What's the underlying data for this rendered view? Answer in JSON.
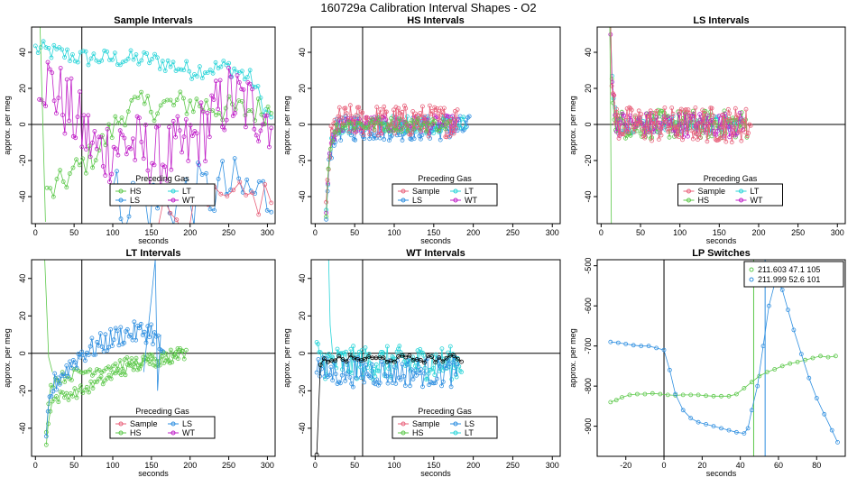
{
  "figure_title": "160729a   Calibration Interval Shapes - O2",
  "colors": {
    "Sample": "#E8607A",
    "HS": "#5CC84A",
    "LS": "#2F8FE0",
    "LT": "#28D4D8",
    "WT": "#C020C8",
    "LP1": "#5CC84A",
    "LP2": "#2F8FE0",
    "black": "#000000"
  },
  "chart_data": [
    {
      "type": "line",
      "id": "sample",
      "title": "Sample Intervals",
      "xlabel": "seconds",
      "ylabel": "approx. per meg",
      "xlim": [
        -5,
        310
      ],
      "ylim": [
        -55,
        54
      ],
      "xticks": [
        0,
        50,
        100,
        150,
        200,
        250,
        300
      ],
      "yticks": [
        -40,
        -20,
        0,
        20,
        40
      ],
      "hline": 0,
      "vline": 60,
      "legend": {
        "title": "Preceding Gas",
        "placement": "bottom-center",
        "entries": [
          "HS",
          "LT",
          "LS",
          "WT"
        ]
      },
      "series": [
        {
          "name": "LT",
          "kind": "noisy",
          "x0": 0,
          "x1": 305,
          "n": 90,
          "amp": 5,
          "anchors": [
            [
              0,
              42
            ],
            [
              60,
              37
            ],
            [
              150,
              36
            ],
            [
              200,
              30
            ],
            [
              250,
              32
            ],
            [
              280,
              25
            ],
            [
              300,
              5
            ]
          ]
        },
        {
          "name": "HS",
          "kind": "noisy",
          "x0": 15,
          "x1": 305,
          "n": 70,
          "amp": 8,
          "anchors": [
            [
              15,
              -40
            ],
            [
              40,
              -30
            ],
            [
              80,
              -15
            ],
            [
              120,
              10
            ],
            [
              160,
              10
            ],
            [
              200,
              12
            ],
            [
              250,
              8
            ],
            [
              300,
              8
            ]
          ]
        },
        {
          "name": "WT",
          "kind": "noisy",
          "x0": 5,
          "x1": 305,
          "n": 110,
          "amp": 20,
          "anchors": [
            [
              5,
              30
            ],
            [
              40,
              10
            ],
            [
              80,
              -15
            ],
            [
              120,
              -10
            ],
            [
              160,
              -20
            ],
            [
              200,
              -12
            ],
            [
              250,
              15
            ],
            [
              300,
              5
            ]
          ]
        },
        {
          "name": "LS",
          "kind": "noisy",
          "x0": 100,
          "x1": 305,
          "n": 40,
          "amp": 18,
          "anchors": [
            [
              100,
              -40
            ],
            [
              150,
              -45
            ],
            [
              200,
              -40
            ],
            [
              250,
              -35
            ],
            [
              300,
              -40
            ]
          ]
        },
        {
          "name": "Sample",
          "kind": "noisy",
          "x0": 150,
          "x1": 305,
          "n": 20,
          "amp": 12,
          "anchors": [
            [
              150,
              -50
            ],
            [
              200,
              -48
            ],
            [
              250,
              -45
            ],
            [
              300,
              -40
            ]
          ]
        },
        {
          "name": "HS",
          "kind": "spike",
          "pts": [
            [
              6,
              54
            ],
            [
              9,
              10
            ],
            [
              13,
              -54
            ]
          ]
        }
      ]
    },
    {
      "type": "line",
      "id": "hs",
      "title": "HS Intervals",
      "xlabel": "seconds",
      "ylabel": "approx. per meg",
      "xlim": [
        -5,
        310
      ],
      "ylim": [
        -55,
        54
      ],
      "xticks": [
        0,
        50,
        100,
        150,
        200,
        250,
        300
      ],
      "yticks": [
        -40,
        -20,
        0,
        20,
        40
      ],
      "hline": 0,
      "vline": 60,
      "legend": {
        "title": "Preceding Gas",
        "placement": "bottom-center",
        "entries": [
          "Sample",
          "LT",
          "LS",
          "WT"
        ]
      },
      "series": [
        {
          "name": "LS",
          "kind": "settle",
          "x0": 14,
          "x1": 195,
          "n": 110,
          "amp": 7,
          "start": -55,
          "tau": 4,
          "end": -2
        },
        {
          "name": "LT",
          "kind": "settle",
          "x0": 14,
          "x1": 190,
          "n": 80,
          "amp": 5,
          "start": -52,
          "tau": 4,
          "end": 0
        },
        {
          "name": "WT",
          "kind": "settle",
          "x0": 14,
          "x1": 180,
          "n": 80,
          "amp": 5,
          "start": -50,
          "tau": 4,
          "end": 0
        },
        {
          "name": "Sample",
          "kind": "settle",
          "x0": 14,
          "x1": 180,
          "n": 110,
          "amp": 9,
          "start": -50,
          "tau": 4,
          "end": 2
        },
        {
          "name": "HS",
          "kind": "settle",
          "x0": 14,
          "x1": 170,
          "n": 60,
          "amp": 4,
          "start": -48,
          "tau": 4,
          "end": 0
        }
      ]
    },
    {
      "type": "line",
      "id": "ls",
      "title": "LS Intervals",
      "xlabel": "seconds",
      "ylabel": "approx. per meg",
      "xlim": [
        -5,
        310
      ],
      "ylim": [
        -55,
        54
      ],
      "xticks": [
        0,
        50,
        100,
        150,
        200,
        250,
        300
      ],
      "yticks": [
        -40,
        -20,
        0,
        20,
        40
      ],
      "hline": 0,
      "vline": null,
      "legend": {
        "title": "Preceding Gas",
        "placement": "bottom-center",
        "entries": [
          "Sample",
          "LT",
          "HS",
          "WT"
        ]
      },
      "series": [
        {
          "name": "LT",
          "kind": "settle",
          "x0": 12,
          "x1": 180,
          "n": 90,
          "amp": 5,
          "start": 54,
          "tau": 2.5,
          "end": 0
        },
        {
          "name": "HS",
          "kind": "settle",
          "x0": 12,
          "x1": 185,
          "n": 110,
          "amp": 8,
          "start": 54,
          "tau": 2.5,
          "end": 0
        },
        {
          "name": "WT",
          "kind": "settle",
          "x0": 12,
          "x1": 180,
          "n": 90,
          "amp": 7,
          "start": 54,
          "tau": 2.5,
          "end": 0
        },
        {
          "name": "Sample",
          "kind": "settle",
          "x0": 12,
          "x1": 190,
          "n": 120,
          "amp": 10,
          "start": 54,
          "tau": 2.5,
          "end": 0
        },
        {
          "name": "HS",
          "kind": "spike",
          "pts": [
            [
              11,
              54
            ],
            [
              12,
              10
            ],
            [
              13,
              -55
            ]
          ]
        }
      ]
    },
    {
      "type": "line",
      "id": "lt",
      "title": "LT Intervals",
      "xlabel": "seconds",
      "ylabel": "approx. per meg",
      "xlim": [
        -5,
        310
      ],
      "ylim": [
        -55,
        50
      ],
      "xticks": [
        0,
        50,
        100,
        150,
        200,
        250,
        300
      ],
      "yticks": [
        -40,
        -20,
        0,
        20,
        40
      ],
      "hline": 0,
      "vline": 60,
      "legend": {
        "title": "Preceding Gas",
        "placement": "bottom-center",
        "entries": [
          "Sample",
          "LS",
          "HS",
          "WT"
        ]
      },
      "series": [
        {
          "name": "HS",
          "kind": "settle",
          "x0": 14,
          "x1": 195,
          "n": 70,
          "amp": 3,
          "start": -50,
          "tau": 3,
          "end": -20,
          "drift": [
            [
              14,
              -25
            ],
            [
              60,
              -20
            ],
            [
              120,
              -8
            ],
            [
              195,
              0
            ]
          ]
        },
        {
          "name": "HS",
          "kind": "settle",
          "x0": 14,
          "x1": 190,
          "n": 60,
          "amp": 3,
          "start": -40,
          "tau": 3,
          "end": -10,
          "drift": [
            [
              14,
              -15
            ],
            [
              60,
              -10
            ],
            [
              120,
              -5
            ],
            [
              190,
              0
            ]
          ]
        },
        {
          "name": "LS",
          "kind": "settle",
          "x0": 14,
          "x1": 165,
          "n": 70,
          "amp": 6,
          "start": -50,
          "tau": 3,
          "end": 0,
          "drift": [
            [
              14,
              -20
            ],
            [
              60,
              0
            ],
            [
              110,
              10
            ],
            [
              150,
              12
            ],
            [
              165,
              0
            ]
          ]
        },
        {
          "name": "HS",
          "kind": "spike",
          "pts": [
            [
              12,
              50
            ],
            [
              14,
              30
            ],
            [
              17,
              -2
            ],
            [
              22,
              -10
            ]
          ]
        },
        {
          "name": "LS",
          "kind": "spike",
          "pts": [
            [
              140,
              -10
            ],
            [
              150,
              30
            ],
            [
              155,
              50
            ],
            [
              158,
              -20
            ],
            [
              162,
              10
            ]
          ]
        }
      ]
    },
    {
      "type": "line",
      "id": "wt",
      "title": "WT Intervals",
      "xlabel": "seconds",
      "ylabel": "approx. per meg",
      "xlim": [
        -5,
        310
      ],
      "ylim": [
        -55,
        50
      ],
      "xticks": [
        0,
        50,
        100,
        150,
        200,
        250,
        300
      ],
      "yticks": [
        -40,
        -20,
        0,
        20,
        40
      ],
      "hline": 0,
      "vline": 60,
      "legend": {
        "title": "Preceding Gas",
        "placement": "bottom-center",
        "entries": [
          "Sample",
          "LS",
          "HS",
          "LT"
        ]
      },
      "series": [
        {
          "name": "LT",
          "kind": "settle",
          "x0": 2,
          "x1": 185,
          "n": 120,
          "amp": 9,
          "start": 0,
          "tau": 3,
          "end": -5
        },
        {
          "name": "LS",
          "kind": "settle",
          "x0": 2,
          "x1": 180,
          "n": 90,
          "amp": 8,
          "start": -5,
          "tau": 3,
          "end": -10
        },
        {
          "name": "black",
          "kind": "settle",
          "x0": 2,
          "x1": 185,
          "n": 40,
          "amp": 2,
          "start": -55,
          "tau": 2,
          "end": -3
        },
        {
          "name": "LT",
          "kind": "spike",
          "pts": [
            [
              17,
              50
            ],
            [
              19,
              15
            ],
            [
              22,
              0
            ]
          ]
        }
      ]
    },
    {
      "type": "line",
      "id": "lp",
      "title": "LP Switches",
      "xlabel": "seconds",
      "ylabel": "approx. per meg",
      "xlim": [
        -35,
        95
      ],
      "ylim": [
        -975,
        -485
      ],
      "xticks": [
        -20,
        0,
        20,
        40,
        60,
        80
      ],
      "yticks": [
        -900,
        -800,
        -700,
        -600,
        -500
      ],
      "hline": null,
      "vline": 0,
      "vlines_colored": [
        {
          "x": 47,
          "color": "LP1"
        },
        {
          "x": 53,
          "color": "LP2"
        }
      ],
      "legend": {
        "title": "",
        "placement": "top-right",
        "entries": [
          "211.603 47.1 105",
          "211.999 52.6 101"
        ]
      },
      "series": [
        {
          "name": "LP1",
          "kind": "pts",
          "pts": [
            [
              -28,
              -840
            ],
            [
              -25,
              -835
            ],
            [
              -22,
              -828
            ],
            [
              -18,
              -822
            ],
            [
              -14,
              -820
            ],
            [
              -10,
              -820
            ],
            [
              -6,
              -818
            ],
            [
              -2,
              -820
            ],
            [
              2,
              -822
            ],
            [
              6,
              -823
            ],
            [
              10,
              -822
            ],
            [
              14,
              -822
            ],
            [
              18,
              -822
            ],
            [
              22,
              -824
            ],
            [
              26,
              -825
            ],
            [
              30,
              -825
            ],
            [
              34,
              -825
            ],
            [
              38,
              -820
            ],
            [
              42,
              -805
            ],
            [
              46,
              -790
            ],
            [
              50,
              -775
            ],
            [
              54,
              -765
            ],
            [
              58,
              -758
            ],
            [
              62,
              -750
            ],
            [
              66,
              -744
            ],
            [
              70,
              -740
            ],
            [
              74,
              -735
            ],
            [
              78,
              -730
            ],
            [
              82,
              -725
            ],
            [
              86,
              -728
            ],
            [
              90,
              -725
            ]
          ]
        },
        {
          "name": "LP2",
          "kind": "pts",
          "pts": [
            [
              -28,
              -690
            ],
            [
              -24,
              -692
            ],
            [
              -20,
              -695
            ],
            [
              -16,
              -698
            ],
            [
              -12,
              -700
            ],
            [
              -8,
              -700
            ],
            [
              -4,
              -705
            ],
            [
              0,
              -710
            ],
            [
              3,
              -760
            ],
            [
              6,
              -820
            ],
            [
              10,
              -860
            ],
            [
              14,
              -880
            ],
            [
              18,
              -890
            ],
            [
              22,
              -895
            ],
            [
              26,
              -900
            ],
            [
              30,
              -905
            ],
            [
              34,
              -910
            ],
            [
              38,
              -915
            ],
            [
              42,
              -918
            ],
            [
              44,
              -905
            ],
            [
              46,
              -860
            ],
            [
              49,
              -800
            ],
            [
              52,
              -700
            ],
            [
              55,
              -600
            ],
            [
              58,
              -545
            ],
            [
              60,
              -540
            ],
            [
              62,
              -560
            ],
            [
              65,
              -610
            ],
            [
              68,
              -660
            ],
            [
              72,
              -720
            ],
            [
              76,
              -780
            ],
            [
              80,
              -830
            ],
            [
              84,
              -870
            ],
            [
              88,
              -910
            ],
            [
              91,
              -940
            ]
          ]
        }
      ]
    }
  ]
}
